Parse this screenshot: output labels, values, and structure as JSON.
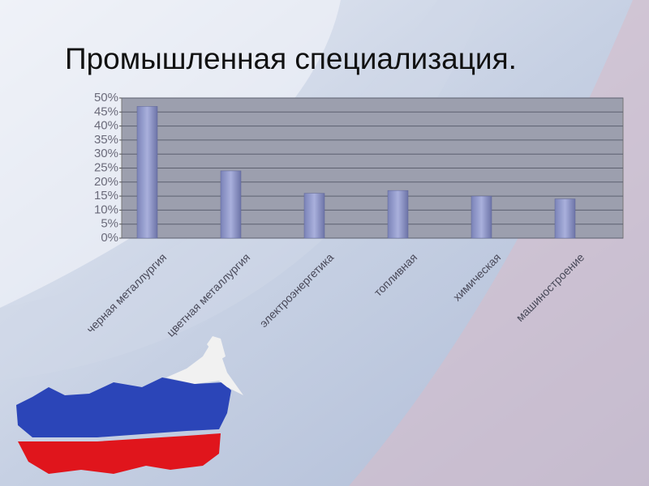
{
  "chart_data": {
    "type": "bar",
    "title": "Промышленная специализация.",
    "categories": [
      "черная металлургия",
      "цветная металлургия",
      "электроэнергетика",
      "топливная",
      "химическая",
      "машиностроение"
    ],
    "values": [
      47,
      24,
      16,
      17,
      15,
      14
    ],
    "color": "#8f97c6",
    "ylim": [
      0,
      50
    ],
    "yticks": [
      {
        "value": 0,
        "label": "0%"
      },
      {
        "value": 5,
        "label": "5%"
      },
      {
        "value": 10,
        "label": "10%"
      },
      {
        "value": 15,
        "label": "15%"
      },
      {
        "value": 20,
        "label": "20%"
      },
      {
        "value": 25,
        "label": "25%"
      },
      {
        "value": 30,
        "label": "30%"
      },
      {
        "value": 35,
        "label": "35%"
      },
      {
        "value": 40,
        "label": "40%"
      },
      {
        "value": 45,
        "label": "45%"
      },
      {
        "value": 50,
        "label": "50%"
      }
    ],
    "grid": true
  }
}
